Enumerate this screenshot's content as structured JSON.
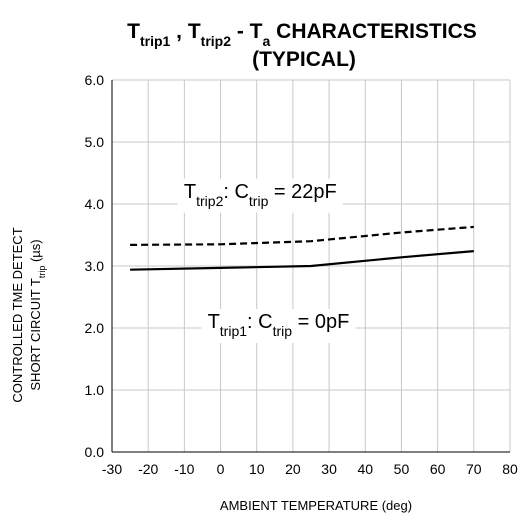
{
  "chart_data": {
    "type": "line",
    "title": {
      "line1": [
        {
          "text": "T"
        },
        {
          "text": "trip1",
          "sub": true
        },
        {
          "text": " , T"
        },
        {
          "text": "trip2",
          "sub": true
        },
        {
          "text": " - T"
        },
        {
          "text": "a",
          "sub": true
        },
        {
          "text": " CHARACTERISTICS"
        }
      ],
      "line2": "(TYPICAL)"
    },
    "xlabel": "AMBIENT TEMPERATURE (deg)",
    "ylabel": {
      "line1": "CONTROLLED TME DETECT",
      "line2": [
        {
          "text": "SHORT CIRCUIT T"
        },
        {
          "text": "trip",
          "sub": true
        },
        {
          "text": " (µs)"
        }
      ]
    },
    "xlim": [
      -30,
      80
    ],
    "ylim": [
      0.0,
      6.0
    ],
    "x_ticks": [
      -30,
      -20,
      -10,
      0,
      10,
      20,
      30,
      40,
      50,
      60,
      70,
      80
    ],
    "y_ticks": [
      "0.0",
      "1.0",
      "2.0",
      "3.0",
      "4.0",
      "5.0",
      "6.0"
    ],
    "grid": true,
    "series": [
      {
        "name": "Ttrip2: Ctrip = 22pF",
        "style": "dashed",
        "color": "#000000",
        "x": [
          -25,
          0,
          25,
          50,
          70
        ],
        "y": [
          3.34,
          3.35,
          3.4,
          3.54,
          3.63
        ]
      },
      {
        "name": "Ttrip1: Ctrip = 0pF",
        "style": "solid",
        "color": "#000000",
        "x": [
          -25,
          0,
          25,
          50,
          70
        ],
        "y": [
          2.94,
          2.97,
          3.0,
          3.14,
          3.24
        ]
      }
    ],
    "annotations": [
      {
        "id": "trip2",
        "x": 11,
        "y": 4.1,
        "parts": [
          {
            "text": "T"
          },
          {
            "text": "trip2",
            "sub": true
          },
          {
            "text": ": C"
          },
          {
            "text": "trip",
            "sub": true
          },
          {
            "text": " = 22pF"
          }
        ]
      },
      {
        "id": "trip1",
        "x": 16,
        "y": 2.0,
        "parts": [
          {
            "text": "T"
          },
          {
            "text": "trip1",
            "sub": true
          },
          {
            "text": ": C"
          },
          {
            "text": "trip",
            "sub": true
          },
          {
            "text": " = 0pF"
          }
        ]
      }
    ]
  }
}
